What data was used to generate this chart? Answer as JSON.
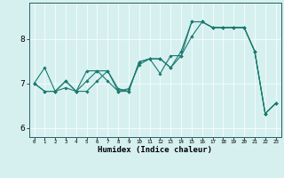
{
  "xlabel": "Humidex (Indice chaleur)",
  "xlim": [
    -0.5,
    23.5
  ],
  "ylim": [
    5.8,
    8.8
  ],
  "yticks": [
    6,
    7,
    8
  ],
  "xticks": [
    0,
    1,
    2,
    3,
    4,
    5,
    6,
    7,
    8,
    9,
    10,
    11,
    12,
    13,
    14,
    15,
    16,
    17,
    18,
    19,
    20,
    21,
    22,
    23
  ],
  "bg_color": "#d6f0f0",
  "line_color": "#1a7a6e",
  "grid_color": "#ffffff",
  "figsize": [
    3.2,
    2.0
  ],
  "dpi": 100,
  "lines": [
    [
      7.0,
      7.35,
      6.82,
      6.9,
      6.82,
      6.82,
      7.05,
      7.28,
      6.82,
      6.82,
      7.48,
      7.55,
      7.22,
      7.62,
      7.62,
      8.38,
      8.38,
      8.25,
      8.25,
      8.25,
      8.25,
      7.72,
      6.32,
      6.55
    ],
    [
      7.0,
      6.82,
      6.82,
      7.05,
      6.82,
      7.05,
      7.28,
      7.05,
      6.82,
      6.88,
      7.42,
      7.55,
      7.55,
      7.35,
      7.62,
      8.05,
      8.38,
      8.25,
      8.25,
      8.25,
      8.25,
      7.72,
      6.32,
      6.55
    ],
    [
      7.0,
      6.82,
      6.82,
      7.05,
      6.82,
      7.28,
      7.28,
      7.28,
      6.88,
      6.82,
      7.48,
      7.55,
      7.55,
      7.35,
      7.72,
      8.38,
      8.38,
      8.25,
      8.25,
      8.25,
      8.25,
      7.72,
      6.32,
      6.55
    ]
  ]
}
